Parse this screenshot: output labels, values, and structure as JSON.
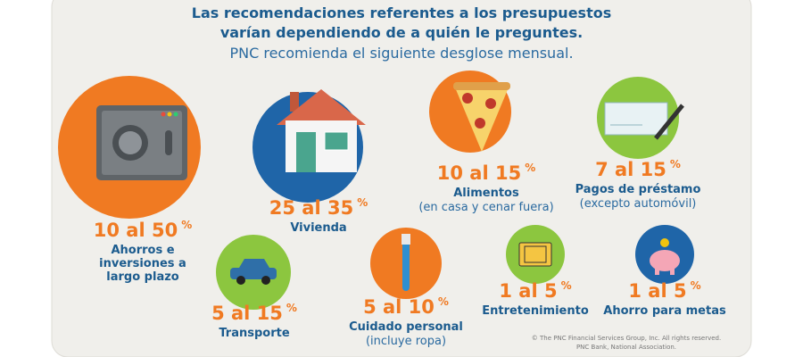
{
  "header": {
    "title": [
      "Las recomendaciones referentes a los presupuestos",
      "varían dependiendo de a quién le preguntes."
    ],
    "subtitle": "PNC recomienda el siguiente desglose mensual."
  },
  "items": [
    {
      "range": "10 al 50",
      "unit": "%",
      "label": [
        "Ahorros e",
        "inversiones a",
        "largo plazo"
      ]
    },
    {
      "range": "25 al 35",
      "unit": "%",
      "label": [
        "Vivienda"
      ]
    },
    {
      "range": "10 al 15",
      "unit": "%",
      "label": [
        "Alimentos"
      ],
      "note": "(en casa y cenar fuera)"
    },
    {
      "range": "7 al 15",
      "unit": "%",
      "label": [
        "Pagos de préstamo"
      ],
      "note": "(excepto automóvil)"
    },
    {
      "range": "5 al 15",
      "unit": "%",
      "label": [
        "Transporte"
      ]
    },
    {
      "range": "5 al 10",
      "unit": "%",
      "label": [
        "Cuidado personal"
      ],
      "note": "(incluye ropa)"
    },
    {
      "range": "1 al 5",
      "unit": "%",
      "label": [
        "Entretenimiento"
      ]
    },
    {
      "range": "1 al 5",
      "unit": "%",
      "label": [
        "Ahorro para metas"
      ]
    }
  ],
  "footer": [
    "© The PNC Financial Services Group, Inc. All rights reserved.",
    "PNC Bank, National Association."
  ]
}
